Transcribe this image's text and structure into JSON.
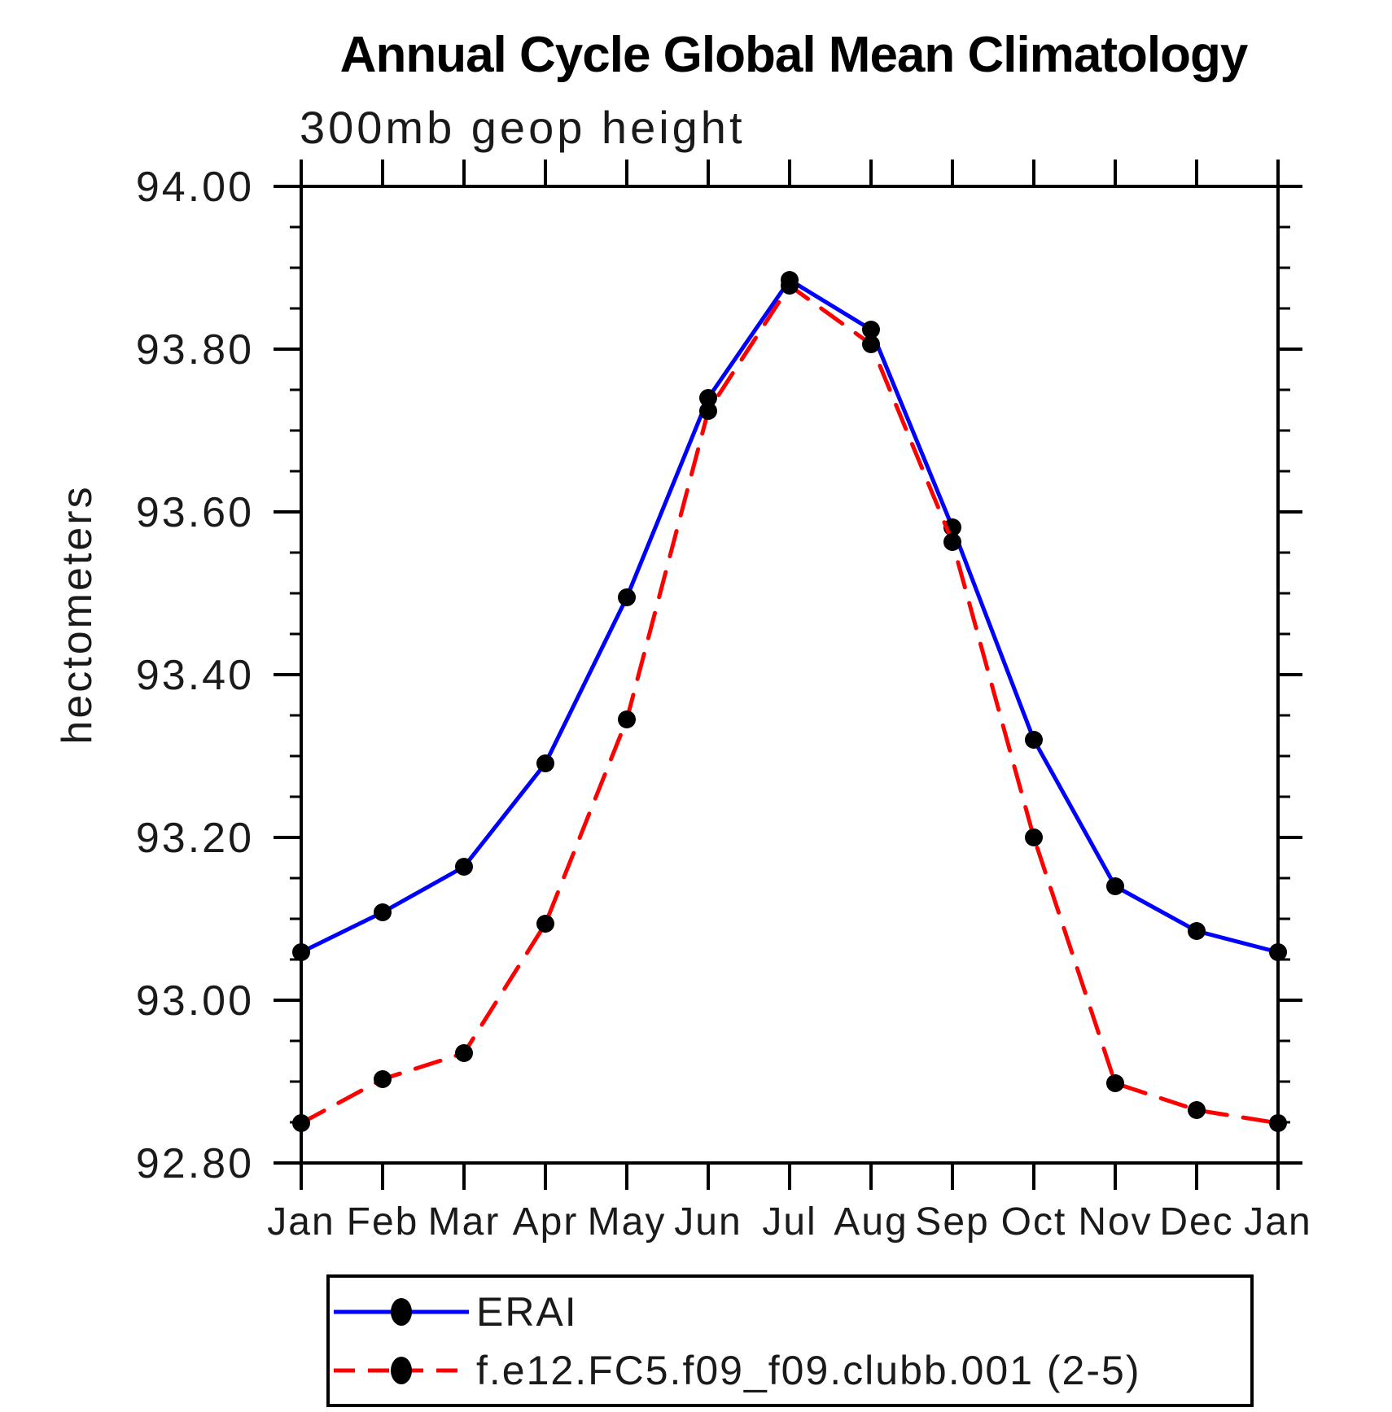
{
  "title": "Annual Cycle Global Mean Climatology",
  "subtitle": "300mb geop height",
  "ylabel": "hectometers",
  "colors": {
    "erai_line": "#0000ff",
    "model_line": "#ff0000",
    "marker": "#000000",
    "axis": "#000000"
  },
  "chart_data": {
    "type": "line",
    "categories": [
      "Jan",
      "Feb",
      "Mar",
      "Apr",
      "May",
      "Jun",
      "Jul",
      "Aug",
      "Sep",
      "Oct",
      "Nov",
      "Dec",
      "Jan"
    ],
    "series": [
      {
        "name": "ERAI",
        "color": "#0000ff",
        "line_style": "solid",
        "marker": "filled-circle",
        "marker_color": "#000000",
        "values": [
          93.059,
          93.108,
          93.164,
          93.291,
          93.495,
          93.74,
          93.885,
          93.824,
          93.581,
          93.32,
          93.14,
          93.085,
          93.059
        ]
      },
      {
        "name": "f.e12.FC5.f09_f09.clubb.001 (2-5)",
        "color": "#ff0000",
        "line_style": "dashed",
        "marker": "filled-circle",
        "marker_color": "#000000",
        "values": [
          92.849,
          92.903,
          92.935,
          93.094,
          93.345,
          93.724,
          93.878,
          93.806,
          93.563,
          93.2,
          92.898,
          92.865,
          92.849
        ]
      }
    ],
    "title": "Annual Cycle Global Mean Climatology",
    "subtitle": "300mb geop height",
    "xlabel": "",
    "ylabel": "hectometers",
    "ylim": [
      92.8,
      94.0
    ],
    "ytick_major_step": 0.2,
    "ytick_minor_step": 0.05,
    "ytick_labels": [
      "92.80",
      "93.00",
      "93.20",
      "93.40",
      "93.60",
      "93.80",
      "94.00"
    ],
    "grid": false,
    "legend_position": "bottom-left-box"
  }
}
